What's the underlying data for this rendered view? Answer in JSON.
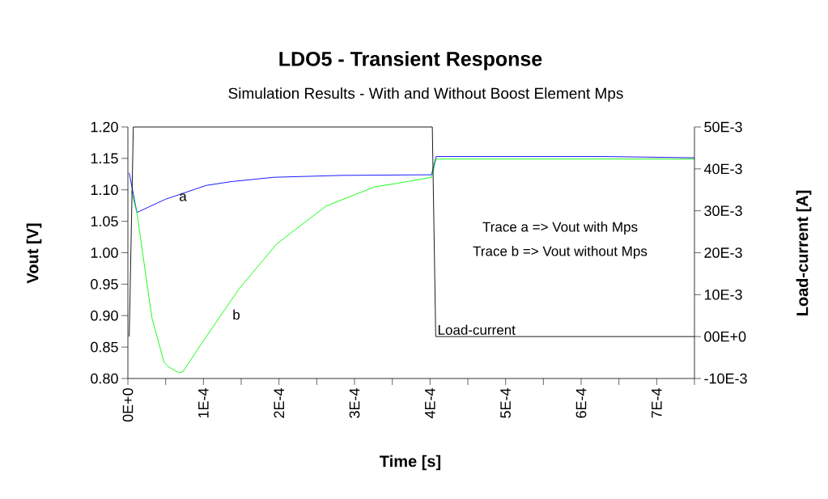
{
  "chart_data": {
    "type": "line",
    "title": "LDO5 - Transient Response",
    "subtitle": "Simulation Results - With and Without Boost Element Mps",
    "xlabel": "Time [s]",
    "ylabel": "Vout [V]",
    "y2label": "Load-current [A]",
    "xlim": [
      0,
      0.00075
    ],
    "xticks": [
      {
        "value": 0,
        "label": "0E+0"
      },
      {
        "value": 5e-05,
        "label": null
      },
      {
        "value": 0.0001,
        "label": "1E-4"
      },
      {
        "value": 0.00015,
        "label": null
      },
      {
        "value": 0.0002,
        "label": "2E-4"
      },
      {
        "value": 0.00025,
        "label": null
      },
      {
        "value": 0.0003,
        "label": "3E-4"
      },
      {
        "value": 0.00035,
        "label": null
      },
      {
        "value": 0.0004,
        "label": "4E-4"
      },
      {
        "value": 0.00045,
        "label": null
      },
      {
        "value": 0.0005,
        "label": "5E-4"
      },
      {
        "value": 0.00055,
        "label": null
      },
      {
        "value": 0.0006,
        "label": "6E-4"
      },
      {
        "value": 0.00065,
        "label": null
      },
      {
        "value": 0.0007,
        "label": "7E-4"
      },
      {
        "value": 0.00075,
        "label": null
      }
    ],
    "ylim": [
      0.8,
      1.2
    ],
    "yticks": [
      {
        "value": 0.8,
        "label": "0.80"
      },
      {
        "value": 0.85,
        "label": "0.85"
      },
      {
        "value": 0.9,
        "label": "0.90"
      },
      {
        "value": 0.95,
        "label": "0.95"
      },
      {
        "value": 1.0,
        "label": "1.00"
      },
      {
        "value": 1.05,
        "label": "1.05"
      },
      {
        "value": 1.1,
        "label": "1.10"
      },
      {
        "value": 1.15,
        "label": "1.15"
      },
      {
        "value": 1.2,
        "label": "1.20"
      }
    ],
    "y2lim": [
      -0.01,
      0.05
    ],
    "y2ticks": [
      {
        "value": -0.01,
        "label": "-10E-3"
      },
      {
        "value": 0,
        "label": "00E+0"
      },
      {
        "value": 0.01,
        "label": "10E-3"
      },
      {
        "value": 0.02,
        "label": "20E-3"
      },
      {
        "value": 0.03,
        "label": "30E-3"
      },
      {
        "value": 0.04,
        "label": "40E-3"
      },
      {
        "value": 0.05,
        "label": "50E-3"
      }
    ],
    "marker": "none",
    "line_style": "solid",
    "series": [
      {
        "color": "#0000ff",
        "x": [
          1.8e-06,
          1.19e-05,
          4.96e-05,
          0.0001036,
          0.000136,
          0.0001935,
          0.000283,
          0.000402,
          0.000408,
          0.00063,
          0.00075
        ],
        "values": [
          1.127,
          1.064,
          1.085,
          1.107,
          1.113,
          1.12,
          1.123,
          1.124,
          1.153,
          1.153,
          1.151
        ]
      },
      {
        "color": "#00ff00",
        "x": [
          4.7e-06,
          1.19e-05,
          3.17e-05,
          4.78e-05,
          5.32e-05,
          6.76e-05,
          7.3e-05,
          0.0001,
          0.0001468,
          0.000197,
          0.000262,
          0.000327,
          0.000355,
          0.000402,
          0.000408,
          0.00075
        ],
        "values": [
          1.098,
          1.064,
          0.897,
          0.826,
          0.819,
          0.809,
          0.811,
          0.86,
          0.942,
          1.014,
          1.074,
          1.105,
          1.11,
          1.12,
          1.149,
          1.149
        ]
      },
      {
        "name": "Load-current",
        "color": "#000000",
        "axis": "y2",
        "x": [
          1.8e-06,
          7.2e-06,
          0.000403,
          0.0004075,
          0.00075
        ],
        "values": [
          0,
          0.05,
          0.05,
          0,
          0
        ]
      }
    ],
    "annotations": [
      "a",
      "b",
      "Trace a => Vout with Mps",
      "Trace b => Vout without Mps"
    ]
  }
}
